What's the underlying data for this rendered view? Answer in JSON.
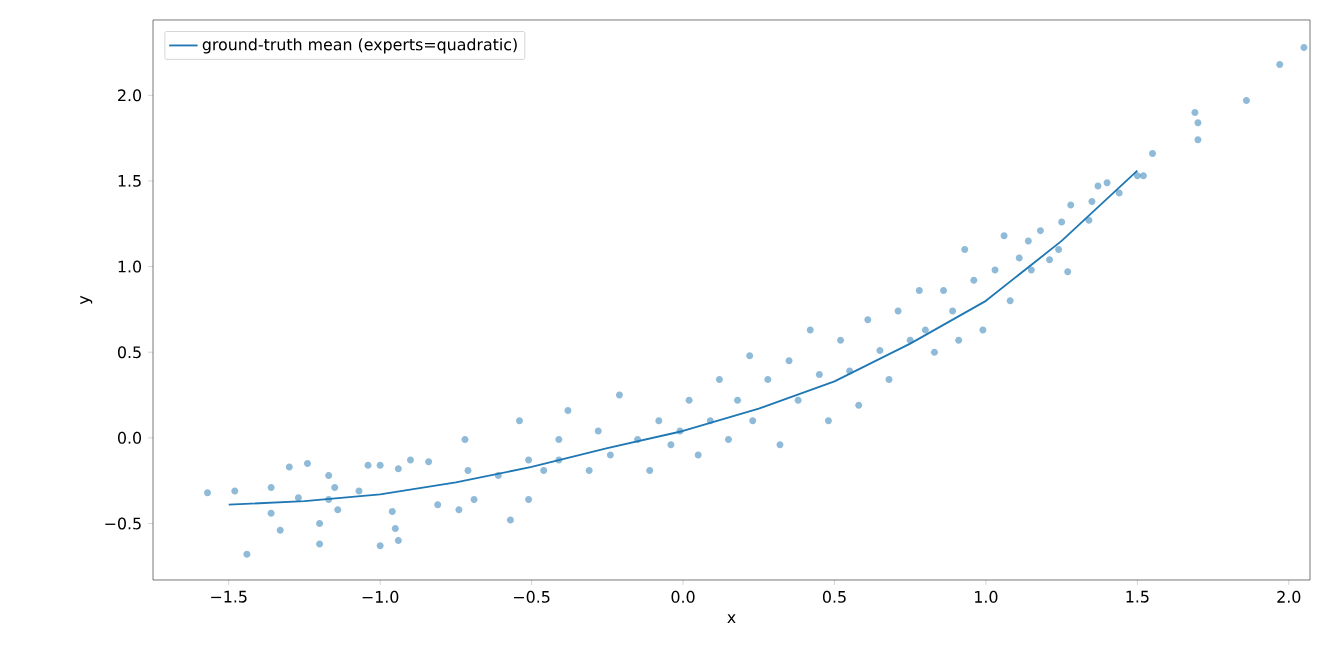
{
  "chart_data": {
    "type": "scatter",
    "xlabel": "x",
    "ylabel": "y",
    "xlim": [
      -1.75,
      2.07
    ],
    "ylim": [
      -0.83,
      2.44
    ],
    "xticks": [
      {
        "value": -1.5,
        "label": "−1.5"
      },
      {
        "value": -1.0,
        "label": "−1.0"
      },
      {
        "value": -0.5,
        "label": "−0.5"
      },
      {
        "value": 0.0,
        "label": "0.0"
      },
      {
        "value": 0.5,
        "label": "0.5"
      },
      {
        "value": 1.0,
        "label": "1.0"
      },
      {
        "value": 1.5,
        "label": "1.5"
      },
      {
        "value": 2.0,
        "label": "2.0"
      }
    ],
    "yticks": [
      {
        "value": -0.5,
        "label": "−0.5"
      },
      {
        "value": 0.0,
        "label": "0.0"
      },
      {
        "value": 0.5,
        "label": "0.5"
      },
      {
        "value": 1.0,
        "label": "1.0"
      },
      {
        "value": 1.5,
        "label": "1.5"
      },
      {
        "value": 2.0,
        "label": "2.0"
      }
    ],
    "marker": "circle",
    "legend": "top left",
    "grid": false,
    "series": [
      {
        "color": "#1f77b4",
        "x": [
          -1.57,
          -1.48,
          -1.44,
          -1.36,
          -1.36,
          -1.33,
          -1.3,
          -1.24,
          -1.27,
          -1.2,
          -1.2,
          -1.17,
          -1.14,
          -1.15,
          -1.17,
          -1.0,
          -0.95,
          -0.94,
          -0.96,
          -1.07,
          -1.04,
          -1.0,
          -0.94,
          -0.9,
          -0.84,
          -0.81,
          -0.74,
          -0.72,
          -0.69,
          -0.71,
          -0.61,
          -0.57,
          -0.54,
          -0.51,
          -0.46,
          -0.41,
          -0.51,
          -0.41,
          -0.38,
          -0.31,
          -0.28,
          -0.24,
          -0.21,
          -0.15,
          -0.11,
          -0.08,
          -0.04,
          -0.01,
          0.02,
          0.05,
          0.09,
          0.12,
          0.15,
          0.18,
          0.22,
          0.23,
          0.28,
          0.32,
          0.35,
          0.38,
          0.42,
          0.45,
          0.48,
          0.52,
          0.55,
          0.58,
          0.61,
          0.65,
          0.68,
          0.71,
          0.75,
          0.78,
          0.8,
          0.83,
          0.86,
          0.89,
          0.91,
          0.93,
          0.96,
          0.99,
          1.03,
          1.06,
          1.08,
          1.11,
          1.14,
          1.15,
          1.21,
          1.24,
          1.27,
          1.18,
          1.28,
          1.25,
          1.34,
          1.35,
          1.37,
          1.4,
          1.44,
          1.5,
          1.52,
          1.55,
          1.69,
          1.7,
          1.7,
          1.86,
          1.97,
          2.05
        ],
        "values": [
          -0.32,
          -0.31,
          -0.68,
          -0.29,
          -0.44,
          -0.54,
          -0.17,
          -0.15,
          -0.35,
          -0.5,
          -0.62,
          -0.36,
          -0.42,
          -0.29,
          -0.22,
          -0.63,
          -0.53,
          -0.6,
          -0.43,
          -0.31,
          -0.16,
          -0.16,
          -0.18,
          -0.13,
          -0.14,
          -0.39,
          -0.42,
          -0.01,
          -0.36,
          -0.19,
          -0.22,
          -0.48,
          0.1,
          -0.13,
          -0.19,
          -0.13,
          -0.36,
          -0.01,
          0.16,
          -0.19,
          0.04,
          -0.1,
          0.25,
          -0.01,
          -0.19,
          0.1,
          -0.04,
          0.04,
          0.22,
          -0.1,
          0.1,
          0.34,
          -0.01,
          0.22,
          0.48,
          0.1,
          0.34,
          -0.04,
          0.45,
          0.22,
          0.63,
          0.37,
          0.1,
          0.57,
          0.39,
          0.19,
          0.69,
          0.51,
          0.34,
          0.74,
          0.57,
          0.86,
          0.63,
          0.5,
          0.86,
          0.74,
          0.57,
          1.1,
          0.92,
          0.63,
          0.98,
          1.18,
          0.8,
          1.05,
          1.15,
          0.98,
          1.04,
          1.1,
          0.97,
          1.21,
          1.36,
          1.26,
          1.27,
          1.38,
          1.47,
          1.49,
          1.43,
          1.53,
          1.53,
          1.66,
          1.9,
          1.84,
          1.74,
          1.97,
          2.18,
          2.28
        ]
      },
      {
        "type": "line",
        "name": "ground-truth mean (experts=quadratic)",
        "color": "#1f77b4",
        "marker": "none",
        "x": [
          -1.5,
          -1.25,
          -1.0,
          -0.75,
          -0.5,
          -0.25,
          0.0,
          0.25,
          0.5,
          0.75,
          1.0,
          1.25,
          1.5
        ],
        "values": [
          -0.39,
          -0.37,
          -0.33,
          -0.26,
          -0.17,
          -0.06,
          0.04,
          0.17,
          0.33,
          0.55,
          0.8,
          1.15,
          1.56
        ]
      }
    ]
  }
}
